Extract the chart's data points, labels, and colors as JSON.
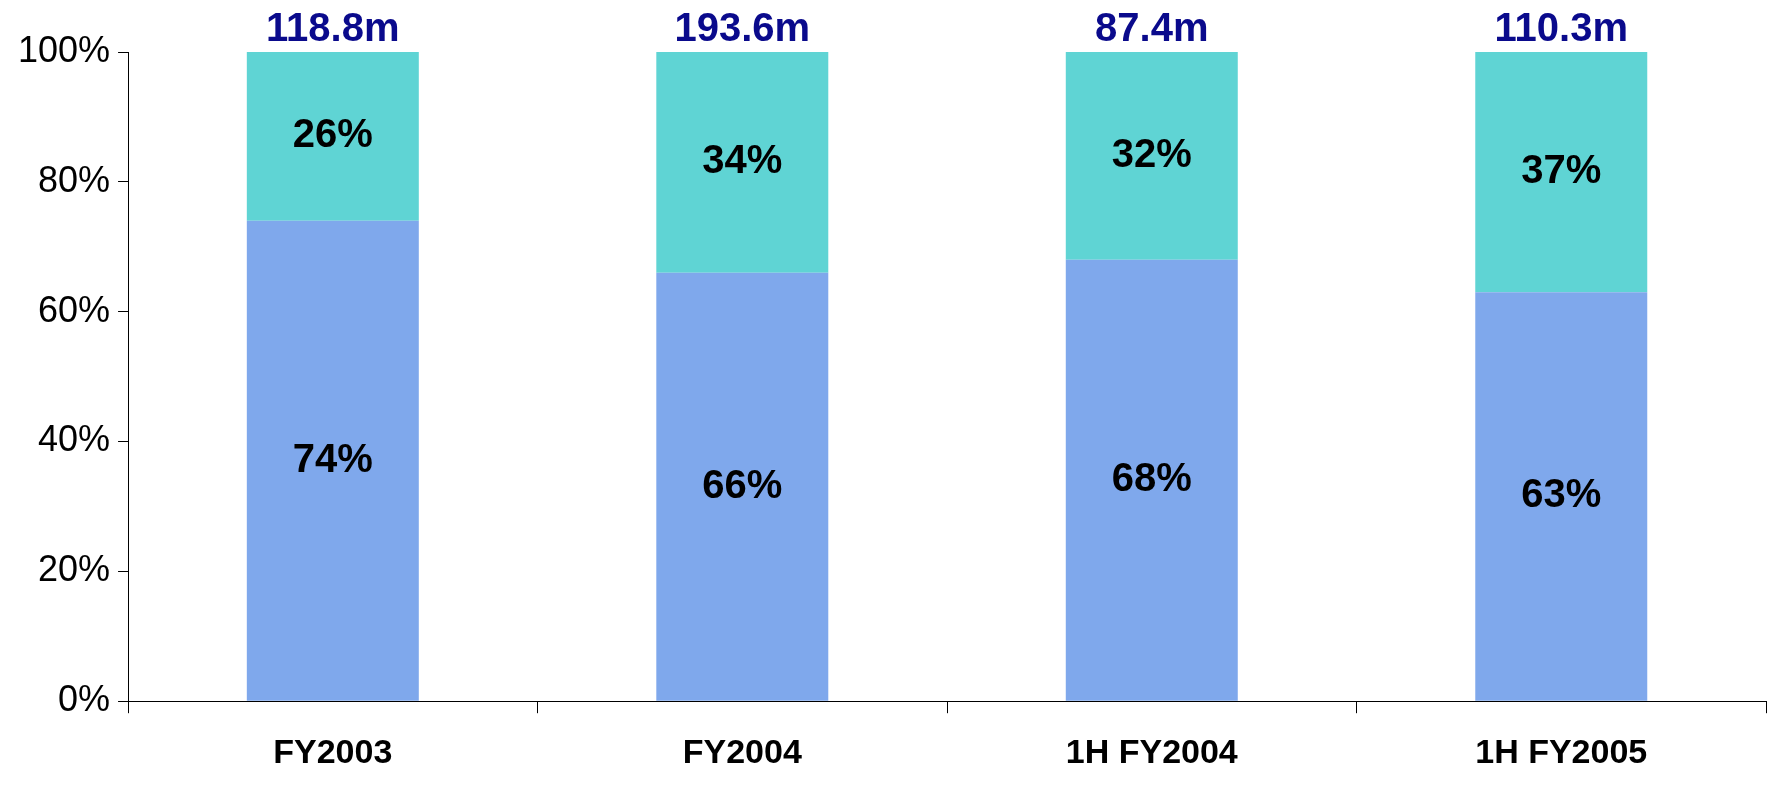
{
  "chart_data": {
    "type": "bar",
    "stacked": true,
    "categories": [
      "FY2003",
      "FY2004",
      "1H FY2004",
      "1H FY2005"
    ],
    "series": [
      {
        "color": "#7fa8ec",
        "values": [
          74,
          66,
          68,
          63
        ],
        "value_labels": [
          "74%",
          "66%",
          "68%",
          "63%"
        ]
      },
      {
        "color": "#5fd4d4",
        "values": [
          26,
          34,
          32,
          37
        ],
        "value_labels": [
          "26%",
          "34%",
          "32%",
          "37%"
        ]
      }
    ],
    "annotations": [
      {
        "text": "118.8m",
        "x": "FY2003",
        "y": 100
      },
      {
        "text": "193.6m",
        "x": "FY2004",
        "y": 100
      },
      {
        "text": "87.4m",
        "x": "1H FY2004",
        "y": 100
      },
      {
        "text": "110.3m",
        "x": "1H FY2005",
        "y": 100
      }
    ],
    "ylim": [
      0,
      100
    ],
    "yticks": [
      {
        "value": 0,
        "label": "0%"
      },
      {
        "value": 20,
        "label": "20%"
      },
      {
        "value": 40,
        "label": "40%"
      },
      {
        "value": 60,
        "label": "60%"
      },
      {
        "value": 80,
        "label": "80%"
      },
      {
        "value": 100,
        "label": "100%"
      }
    ],
    "grid": false,
    "legend": false
  }
}
